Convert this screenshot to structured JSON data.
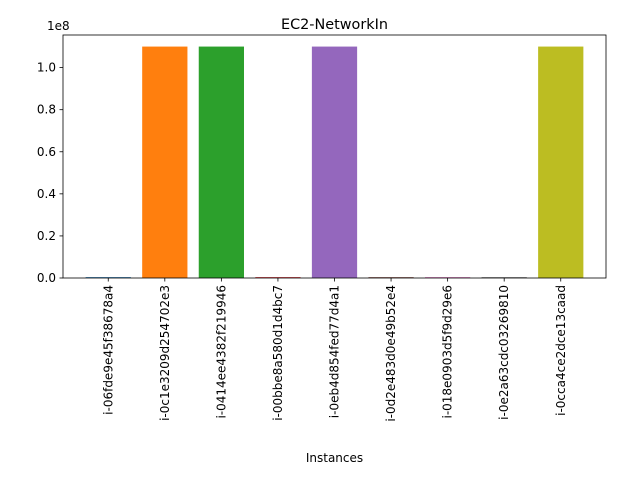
{
  "chart_data": {
    "type": "bar",
    "title": "EC2-NetworkIn",
    "xlabel": "Instances",
    "ylabel": "",
    "y_offset_label": "1e8",
    "y_multiplier": 100000000,
    "ylim": [
      0,
      1.155
    ],
    "yticks": [
      0.0,
      0.2,
      0.4,
      0.6,
      0.8,
      1.0
    ],
    "ytick_labels": [
      "0.0",
      "0.2",
      "0.4",
      "0.6",
      "0.8",
      "1.0"
    ],
    "categories": [
      "i-06fde9e45f38678a4",
      "i-0c1e3209d254702e3",
      "i-0414ee4382f219946",
      "i-00bbe8a580d1d4bc7",
      "i-0eb4d854fed77d4a1",
      "i-0d2e483d0e49b52e4",
      "i-018e0903d5f9d29e6",
      "i-0e2a63cdc03269810",
      "i-0cca4ce2dce13caad"
    ],
    "values": [
      0.004,
      1.1,
      1.1,
      0.004,
      1.1,
      0.004,
      0.004,
      0.004,
      1.1
    ],
    "colors": [
      "#1f77b4",
      "#ff7f0e",
      "#2ca02c",
      "#d62728",
      "#9467bd",
      "#8c564b",
      "#e377c2",
      "#7f7f7f",
      "#bcbd22"
    ],
    "grid": false,
    "legend": "none"
  }
}
